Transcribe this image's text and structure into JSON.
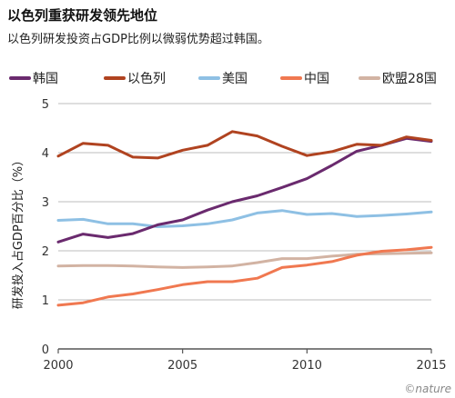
{
  "title": "以色列重获研发领先地位",
  "subtitle": "以色列研发投资占GDP比例以微弱优势超过韩国。",
  "watermark": "nature",
  "chart_data": {
    "type": "line",
    "xlabel": "",
    "ylabel": "研发投入占GDP百分比（%）",
    "xlim": [
      2000,
      2015
    ],
    "ylim": [
      0,
      5
    ],
    "xticks": [
      2000,
      2005,
      2010,
      2015
    ],
    "yticks": [
      0,
      1,
      2,
      3,
      4,
      5
    ],
    "grid": "horizontal",
    "legend_position": "top",
    "x": [
      2000,
      2001,
      2002,
      2003,
      2004,
      2005,
      2006,
      2007,
      2008,
      2009,
      2010,
      2011,
      2012,
      2013,
      2014,
      2015
    ],
    "series": [
      {
        "name": "韩国",
        "color": "#6a2a6e",
        "values": [
          2.18,
          2.34,
          2.27,
          2.35,
          2.53,
          2.63,
          2.83,
          3.0,
          3.12,
          3.29,
          3.47,
          3.74,
          4.03,
          4.15,
          4.29,
          4.23
        ]
      },
      {
        "name": "以色列",
        "color": "#b04320",
        "values": [
          3.93,
          4.19,
          4.15,
          3.91,
          3.89,
          4.05,
          4.15,
          4.43,
          4.34,
          4.13,
          3.94,
          4.02,
          4.17,
          4.15,
          4.32,
          4.25
        ]
      },
      {
        "name": "美国",
        "color": "#8ec0e4",
        "values": [
          2.62,
          2.64,
          2.55,
          2.55,
          2.49,
          2.51,
          2.55,
          2.63,
          2.77,
          2.82,
          2.74,
          2.76,
          2.7,
          2.72,
          2.75,
          2.79
        ]
      },
      {
        "name": "中国",
        "color": "#f07850",
        "values": [
          0.89,
          0.94,
          1.06,
          1.12,
          1.21,
          1.31,
          1.37,
          1.37,
          1.44,
          1.66,
          1.71,
          1.78,
          1.91,
          1.99,
          2.02,
          2.07
        ]
      },
      {
        "name": "欧盟28国",
        "color": "#d2b3a3",
        "values": [
          1.69,
          1.7,
          1.7,
          1.69,
          1.67,
          1.66,
          1.67,
          1.69,
          1.76,
          1.84,
          1.84,
          1.89,
          1.93,
          1.94,
          1.95,
          1.96
        ]
      }
    ]
  }
}
